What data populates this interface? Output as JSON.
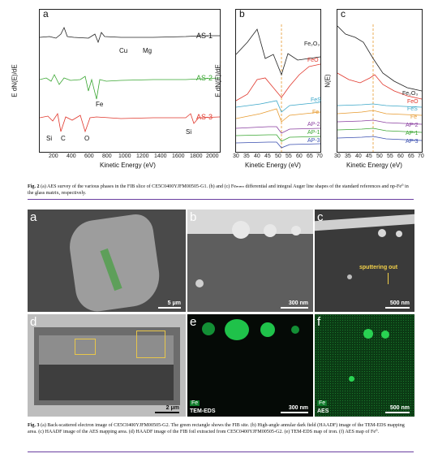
{
  "fig2": {
    "panel_a": {
      "letter": "a",
      "ylabel": "E dN(E)/dE",
      "xlabel": "Kinetic Energy (eV)",
      "x_ticks": [
        "200",
        "400",
        "600",
        "800",
        "1000",
        "1200",
        "1400",
        "1600",
        "1800",
        "2000"
      ],
      "curve_labels": [
        "AS-1",
        "AS-2",
        "AS-3"
      ],
      "element_labels": [
        "Cu",
        "Mg",
        "Fe",
        "Si",
        "C",
        "O",
        "Si"
      ]
    },
    "panel_b": {
      "letter": "b",
      "ylabel": "E dN(E)/dE",
      "xlabel": "Kinetic Energy (eV)",
      "x_ticks": [
        "30",
        "35",
        "40",
        "45",
        "50",
        "55",
        "60",
        "65",
        "70"
      ],
      "curve_labels": [
        "Fe₂O₃",
        "FeO",
        "FeS",
        "Fe",
        "AP-2",
        "AP-1",
        "AP-3"
      ]
    },
    "panel_c": {
      "letter": "c",
      "ylabel": "N(E)",
      "xlabel": "Kinetic Energy (eV)",
      "x_ticks": [
        "30",
        "35",
        "40",
        "45",
        "50",
        "55",
        "60",
        "65",
        "70"
      ],
      "curve_labels": [
        "Fe₂O₃",
        "FeO",
        "FeS",
        "Fe",
        "AP-2",
        "AP-1",
        "AP-3"
      ]
    },
    "caption_label": "Fig. 2",
    "caption_text": " (a) AES survey of the various phases in the FIB slice of CE5C0400YJFM00505-G1. (b) and (c) Feₘₘₙ differential and integral Auger line shapes of the standard references and np-Fe⁰ in the glass matrix, respectively."
  },
  "fig3": {
    "panels": [
      {
        "letter": "a",
        "scale": "5 μm"
      },
      {
        "letter": "b",
        "scale": "300 nm"
      },
      {
        "letter": "c",
        "scale": "500 nm",
        "annotation": "sputtering out"
      },
      {
        "letter": "d",
        "scale": "2 μm"
      },
      {
        "letter": "e",
        "scale": "300 nm",
        "element": "Fe",
        "method": "TEM-EDS"
      },
      {
        "letter": "f",
        "scale": "500 nm",
        "element": "Fe",
        "method": "AES"
      }
    ],
    "caption_label": "Fig. 3",
    "caption_text": " (a) Back-scattered electron image of CE5C0400YJFM00505-G2. The green rectangle shows the FIB site. (b) High-angle annular dark field (HAADF) image of the TEM-EDS mapping area. (c) HAADF image of the AES mapping area. (d) HAADF image of the FIB foil extracted from CE5C0400YJFM00505-G2. (e) TEM-EDS map of iron. (f) AES map of Fe⁰."
  },
  "colors": {
    "as1": "#222222",
    "as2": "#3aa632",
    "as3": "#e0362b",
    "rule": "#6a3fa0",
    "fe_green": "#1fc24a",
    "highlight": "#e8c64a"
  }
}
